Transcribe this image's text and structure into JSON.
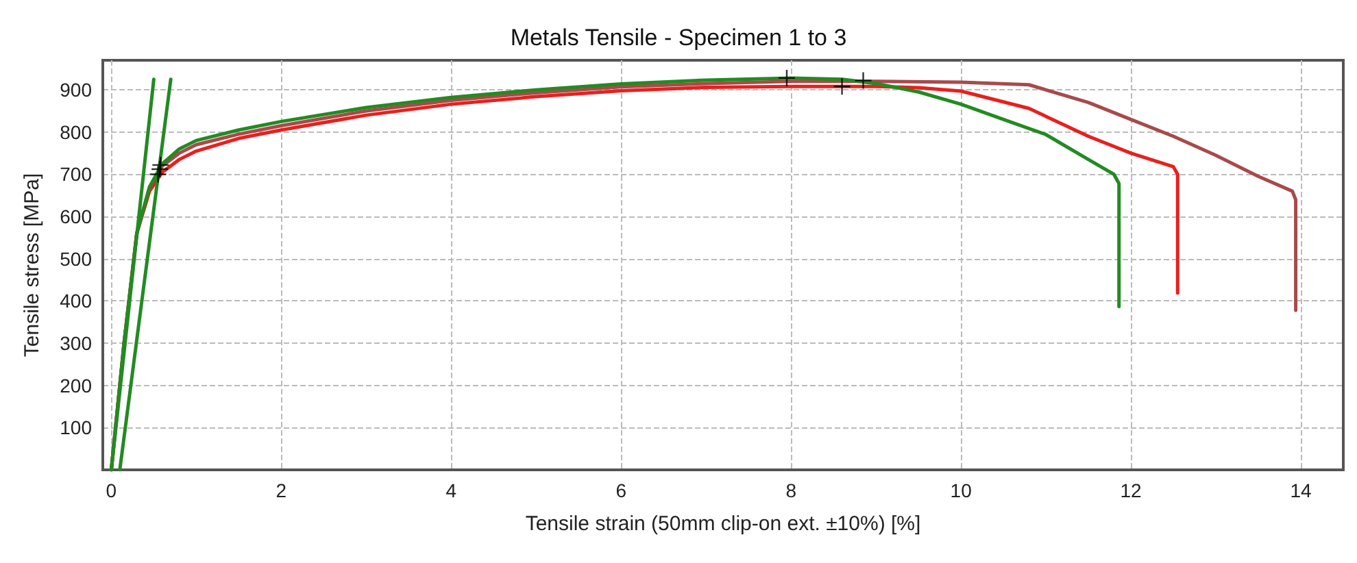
{
  "chart_data": {
    "type": "line",
    "title": "Metals Tensile - Specimen 1 to 3",
    "xlabel": "Tensile strain (50mm clip-on ext. ±10%) [%]",
    "ylabel": "Tensile stress [MPa]",
    "xlim": [
      -0.1,
      14.5
    ],
    "ylim": [
      0,
      970
    ],
    "xticks": [
      0,
      2,
      4,
      6,
      8,
      10,
      12,
      14
    ],
    "yticks": [
      100,
      200,
      300,
      400,
      500,
      600,
      700,
      800,
      900
    ],
    "grid": true,
    "line_style": "solid",
    "marker": "none",
    "series": [
      {
        "color": "#a84a4a",
        "x": [
          0,
          0.15,
          0.3,
          0.45,
          0.6,
          0.8,
          1,
          1.5,
          2,
          3,
          4,
          5,
          6,
          7,
          8,
          9,
          10,
          10.8,
          11.5,
          12,
          12.5,
          13,
          13.5,
          13.9,
          13.94,
          13.94
        ],
        "values": [
          0,
          300,
          560,
          670,
          720,
          750,
          770,
          795,
          815,
          850,
          875,
          893,
          907,
          915,
          920,
          920,
          918,
          912,
          870,
          830,
          790,
          745,
          695,
          660,
          640,
          378
        ]
      },
      {
        "color": "#e8201e",
        "x": [
          0,
          0.15,
          0.3,
          0.45,
          0.6,
          0.8,
          1,
          1.5,
          2,
          3,
          4,
          5,
          6,
          7,
          8,
          9,
          9.5,
          10,
          10.8,
          11.5,
          12,
          12.5,
          12.55,
          12.55
        ],
        "values": [
          0,
          300,
          560,
          660,
          705,
          735,
          755,
          785,
          805,
          840,
          866,
          884,
          898,
          906,
          908,
          908,
          905,
          897,
          856,
          790,
          750,
          718,
          700,
          419
        ]
      },
      {
        "color": "#228b22",
        "x": [
          0,
          0.15,
          0.3,
          0.45,
          0.6,
          0.8,
          1,
          1.5,
          2,
          3,
          4,
          5,
          6,
          7,
          8,
          8.6,
          9,
          9.5,
          10,
          10.5,
          11,
          11.5,
          11.8,
          11.86,
          11.86
        ],
        "values": [
          0,
          300,
          560,
          670,
          725,
          760,
          780,
          805,
          825,
          858,
          882,
          900,
          914,
          923,
          928,
          925,
          915,
          895,
          866,
          830,
          794,
          735,
          700,
          678,
          387
        ]
      },
      {
        "color": "#228b22",
        "x": [
          0,
          0.5
        ],
        "values": [
          0,
          925
        ]
      },
      {
        "color": "#228b22",
        "x": [
          0.1,
          0.7
        ],
        "values": [
          0,
          925
        ]
      },
      {
        "type": "scatter",
        "marker": "cross",
        "color": "#000000",
        "x": [
          0.55,
          0.57,
          0.58,
          7.95,
          8.6,
          8.85
        ],
        "values": [
          700,
          712,
          722,
          928,
          908,
          922
        ]
      }
    ]
  }
}
